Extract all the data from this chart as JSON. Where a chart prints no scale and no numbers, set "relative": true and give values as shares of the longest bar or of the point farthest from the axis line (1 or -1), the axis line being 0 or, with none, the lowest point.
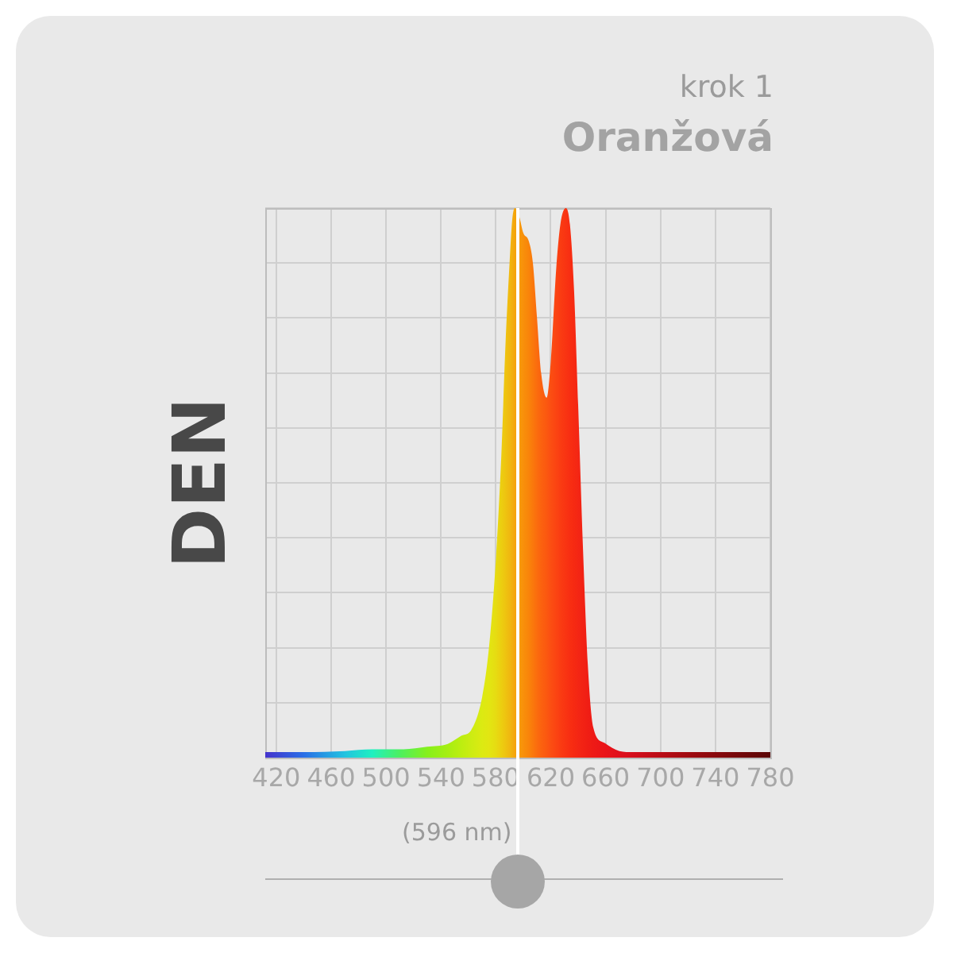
{
  "chart_data": {
    "type": "area",
    "title": "Oranžová",
    "subtitle": "krok 1",
    "ylabel": "DEN",
    "relative": true,
    "x": [
      412,
      440,
      470,
      490,
      510,
      530,
      545,
      555,
      562,
      570,
      575,
      580,
      584,
      587,
      590,
      592,
      594,
      597,
      600,
      604,
      607,
      610,
      613,
      617,
      620,
      624,
      627,
      631,
      634,
      637,
      640,
      643.5,
      647,
      651,
      659,
      670,
      680,
      720,
      780
    ],
    "series": [
      {
        "values": [
          0.01,
          0.01,
          0.012,
          0.015,
          0.015,
          0.02,
          0.025,
          0.04,
          0.05,
          0.11,
          0.2,
          0.36,
          0.55,
          0.75,
          0.9,
          0.98,
          1.0,
          0.985,
          0.955,
          0.94,
          0.9,
          0.8,
          0.7,
          0.655,
          0.72,
          0.89,
          0.97,
          1.0,
          0.97,
          0.85,
          0.64,
          0.38,
          0.17,
          0.055,
          0.027,
          0.012,
          0.01,
          0.01,
          0.01
        ],
        "colors": [
          "#4433cc",
          "#2a6ee6",
          "#22c3e0",
          "#1ff0c0",
          "#4cf060",
          "#86f01c",
          "#a6ee12",
          "#bdee10",
          "#ccec12",
          "#dcea12",
          "#e2e612",
          "#e6dc12",
          "#ecce10",
          "#eec410",
          "#f0b810",
          "#f2ae0e",
          "#f5a40c",
          "#f79a0a",
          "#f8900a",
          "#f9840a",
          "#fa780c",
          "#fb6c0e",
          "#fb620f",
          "#fb5810",
          "#fb4e12",
          "#fb4412",
          "#fa3c12",
          "#f93412",
          "#f82e12",
          "#f62a12",
          "#f42614",
          "#f22214",
          "#f01e14",
          "#ee1a16",
          "#ea1418",
          "#e0101c",
          "#d40e1c",
          "#a00a10",
          "#5a0606"
        ]
      }
    ],
    "xlim": [
      412,
      780
    ],
    "xticks": [
      420,
      460,
      500,
      540,
      580,
      620,
      660,
      700,
      740,
      780
    ],
    "ref_lines": [
      {
        "axis": "x",
        "value": 596,
        "label": "(596 nm)",
        "color": "#ffffff"
      }
    ],
    "grid": true,
    "legend": false
  }
}
